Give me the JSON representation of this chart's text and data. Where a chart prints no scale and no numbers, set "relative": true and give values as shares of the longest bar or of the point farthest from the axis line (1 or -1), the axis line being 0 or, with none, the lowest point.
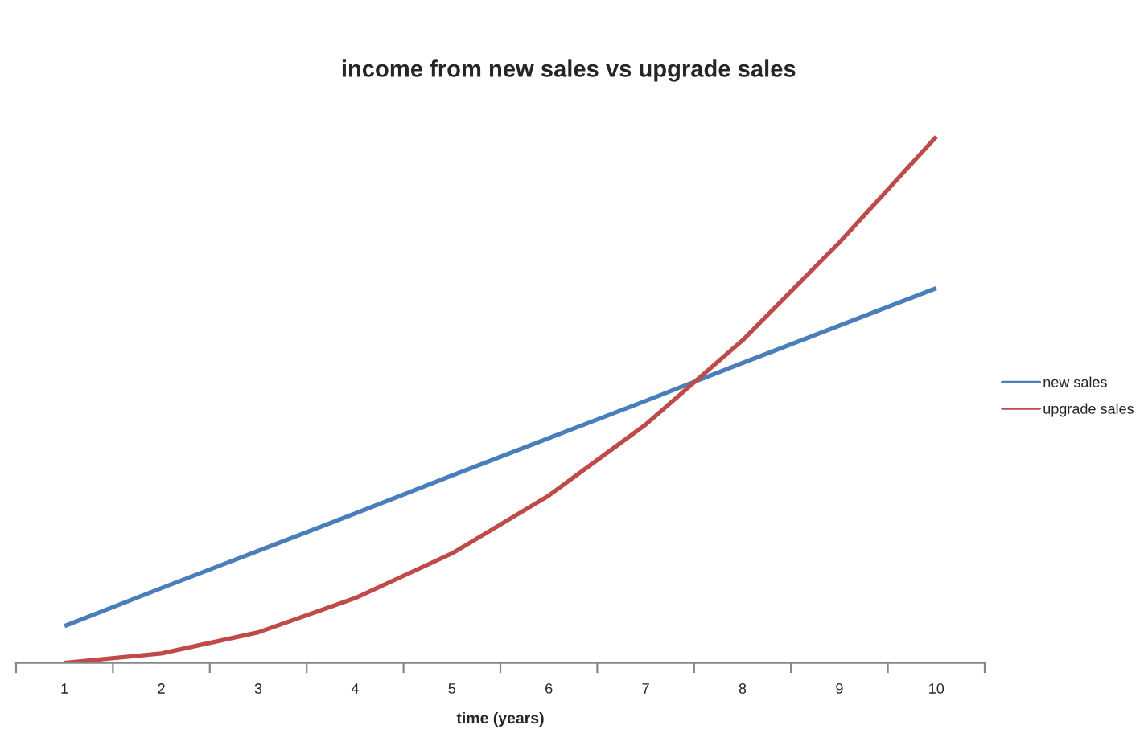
{
  "chart_data": {
    "type": "line",
    "title": "income from new sales vs upgrade sales",
    "xlabel": "time (years)",
    "categories": [
      "1",
      "2",
      "3",
      "4",
      "5",
      "6",
      "7",
      "8",
      "9",
      "10"
    ],
    "relative": true,
    "series": [
      {
        "name": "new sales",
        "color": "#4a7ebb",
        "values": [
          0.07,
          0.142,
          0.213,
          0.284,
          0.356,
          0.427,
          0.498,
          0.57,
          0.641,
          0.712
        ]
      },
      {
        "name": "upgrade sales",
        "color": "#be4b48",
        "values": [
          0.0,
          0.018,
          0.058,
          0.123,
          0.208,
          0.318,
          0.453,
          0.613,
          0.799,
          1.0
        ]
      }
    ],
    "legend": "right",
    "grid": false,
    "marker": "none",
    "line_style": "solid"
  }
}
